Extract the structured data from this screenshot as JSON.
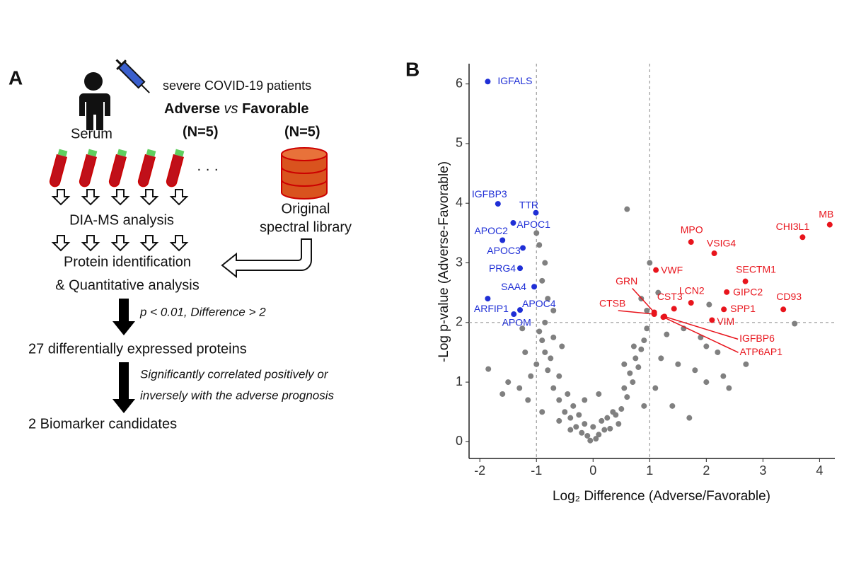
{
  "panel_a": {
    "label": "A",
    "serum": "Serum",
    "cohort": "severe COVID-19 patients",
    "group_a": "Adverse",
    "vs": "vs",
    "group_b": "Favorable",
    "n_a": "(N=5)",
    "n_b": "(N=5)",
    "ellipsis": "· · ·",
    "library": [
      "Original",
      "spectral library"
    ],
    "step_1": "DIA-MS analysis",
    "step_2": [
      "Protein identification",
      "& Quantitative analysis"
    ],
    "filter": "p < 0.01, Difference > 2",
    "result_1": "27 differentially expressed proteins",
    "note": [
      "Significantly correlated positively or",
      "inversely with the adverse prognosis"
    ],
    "result_2": "2 Biomarker candidates"
  },
  "chart_data": {
    "type": "scatter",
    "panel_label": "B",
    "x_label": "Log₂ Difference (Adverse/Favorable)",
    "y_label": "-Log p-value (Adverse-Favorable)",
    "xlim": [
      -2.19,
      4.27
    ],
    "ylim": [
      -0.28,
      6.34
    ],
    "xticks": [
      -2,
      -1,
      0,
      1,
      2,
      3,
      4
    ],
    "yticks": [
      0,
      1,
      2,
      3,
      4,
      5,
      6
    ],
    "thresholds": {
      "x": [
        -1,
        1
      ],
      "y": 2
    },
    "series": [
      {
        "color": "#808080",
        "x": [
          -0.05,
          0.05,
          -0.1,
          0.1,
          -0.2,
          0.2,
          -0.3,
          0.3,
          -0.15,
          0.15,
          -0.4,
          0.4,
          -0.5,
          0.5,
          -0.35,
          0.35,
          -0.6,
          0.6,
          -0.45,
          0.55,
          -0.7,
          0.7,
          -0.6,
          0.65,
          -0.8,
          0.8,
          -0.75,
          0.75,
          -0.85,
          0.85,
          -0.9,
          0.9,
          -0.95,
          0.95,
          -0.7,
          0.72,
          -1.2,
          -1.0,
          -1.5,
          -1.6,
          -1.3,
          -1.85,
          -1.1,
          1.2,
          1.5,
          1.8,
          2.0,
          2.4,
          2.0,
          1.6,
          2.2,
          1.3,
          2.7,
          3.56,
          1.0,
          0.6,
          -0.85,
          -0.9,
          -0.8,
          -0.7,
          -1.0,
          -0.95,
          -0.85,
          0.95,
          0.85,
          1.15,
          -0.55,
          0.55,
          -0.25,
          0.25,
          0.0,
          -0.4,
          0.45,
          -0.6,
          1.1,
          1.4,
          -1.15,
          -0.9,
          0.9,
          -1.25,
          1.7,
          2.05,
          2.3,
          1.9,
          -0.15,
          0.1
        ],
        "y": [
          0.02,
          0.05,
          0.1,
          0.12,
          0.15,
          0.2,
          0.25,
          0.22,
          0.3,
          0.35,
          0.4,
          0.45,
          0.5,
          0.55,
          0.6,
          0.5,
          0.7,
          0.75,
          0.8,
          0.9,
          0.9,
          1.0,
          1.1,
          1.15,
          1.2,
          1.25,
          1.4,
          1.4,
          1.5,
          1.55,
          1.7,
          1.7,
          1.85,
          1.9,
          1.75,
          1.6,
          1.5,
          1.3,
          1.0,
          0.8,
          0.9,
          1.22,
          1.1,
          1.4,
          1.3,
          1.2,
          1.0,
          0.9,
          1.6,
          1.9,
          1.5,
          1.8,
          1.3,
          1.98,
          3.0,
          3.9,
          3.0,
          2.7,
          2.4,
          2.2,
          3.5,
          3.3,
          2.0,
          2.2,
          2.4,
          2.5,
          1.6,
          1.3,
          0.45,
          0.4,
          0.25,
          0.2,
          0.3,
          0.35,
          0.9,
          0.6,
          0.7,
          0.5,
          0.6,
          1.9,
          0.4,
          2.3,
          1.1,
          1.75,
          0.7,
          0.8
        ]
      },
      {
        "color": "#1f2fd6",
        "labels": [
          "IGFALS",
          "IGFBP3",
          "TTR",
          "APOC1",
          "APOC2",
          "APOC3",
          "PRG4",
          "SAA4",
          "ARFIP1",
          "APOC4",
          "APOM"
        ],
        "x": [
          -1.86,
          -1.68,
          -1.01,
          -1.41,
          -1.6,
          -1.24,
          -1.29,
          -1.04,
          -1.86,
          -1.29,
          -1.4
        ],
        "y": [
          6.04,
          3.99,
          3.84,
          3.67,
          3.38,
          3.25,
          2.91,
          2.6,
          2.4,
          2.21,
          2.14
        ]
      },
      {
        "color": "#e8141c",
        "labels": [
          "MB",
          "CHI3L1",
          "MPO",
          "VSIG4",
          "VWF",
          "SECTM1",
          "GRN",
          "CST3",
          "LCN2",
          "GIPC2",
          "CD93",
          "SPP1",
          "VIM",
          "CTSB",
          "IGFBP6",
          "ATP6AP1"
        ],
        "x": [
          4.18,
          3.7,
          1.73,
          2.14,
          1.11,
          2.69,
          1.08,
          1.43,
          1.73,
          2.36,
          3.36,
          2.31,
          2.1,
          1.08,
          1.26,
          1.24
        ],
        "y": [
          3.64,
          3.43,
          3.35,
          3.16,
          2.88,
          2.69,
          2.17,
          2.23,
          2.33,
          2.51,
          2.22,
          2.22,
          2.04,
          2.14,
          2.1,
          2.09
        ]
      }
    ]
  }
}
